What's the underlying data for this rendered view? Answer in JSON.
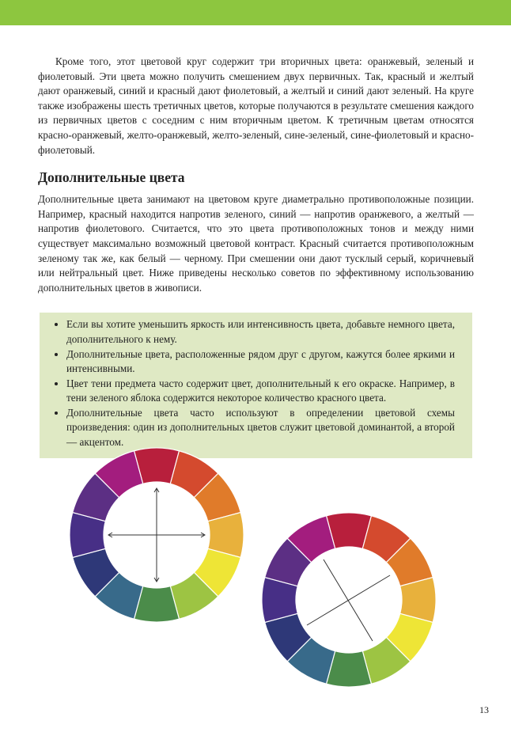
{
  "accent_color": "#8dc63f",
  "box_color": "#dfe9c4",
  "paragraph1": "Кроме того, этот цветовой круг содержит три вторичных цвета: оранжевый, зеленый и фиолетовый. Эти цвета можно получить смешением двух первичных. Так, красный и желтый дают оранжевый, синий и красный дают фиолетовый, а желтый и синий дают зеленый. На круге также изображены шесть третичных цветов, которые получаются в результате смешения каждого из первичных цветов с соседним с ним вторичным цветом. К третичным цветам относятся красно-оранжевый, желто-оранжевый, желто-зеленый, сине-зеленый, сине-фиолетовый и красно-фиолетовый.",
  "heading": "Дополнительные цвета",
  "paragraph2": "Дополнительные цвета занимают на цветовом круге диаметрально противоположные позиции. Например, красный находится напротив зеленого, синий — напротив оранжевого, а желтый — напротив фиолетового. Считается, что это цвета противоположных тонов и между ними существует максимально возможный цветовой контраст. Красный считается противоположным зеленому так же, как белый — черному. При смешении они дают тусклый серый, коричневый или нейтральный цвет. Ниже приведены несколько советов по эффективному использованию дополнительных цветов в живописи.",
  "tips": [
    "Если вы хотите уменьшить яркость или интенсивность цвета, добавьте немного цвета, дополнительного к нему.",
    "Дополнительные цвета, расположенные рядом друг с другом, кажутся более яркими и интенсивными.",
    "Цвет тени предмета часто содержит цвет, дополнительный к его окраске. Например, в тени зеленого яблока содержится некоторое количество красного цвета.",
    "Дополнительные цвета часто используют в определении цветовой схемы произведения: один из дополнительных цветов служит цветовой доминантой, а второй — акцентом."
  ],
  "wheel_colors_clockwise_from_top": [
    "#b81f3c",
    "#d44a2e",
    "#e07b2a",
    "#e8b13c",
    "#eee536",
    "#9dc443",
    "#4b8c4a",
    "#386a8a",
    "#2e3878",
    "#472f86",
    "#5c2f84",
    "#a31d7e"
  ],
  "page_number": "13"
}
